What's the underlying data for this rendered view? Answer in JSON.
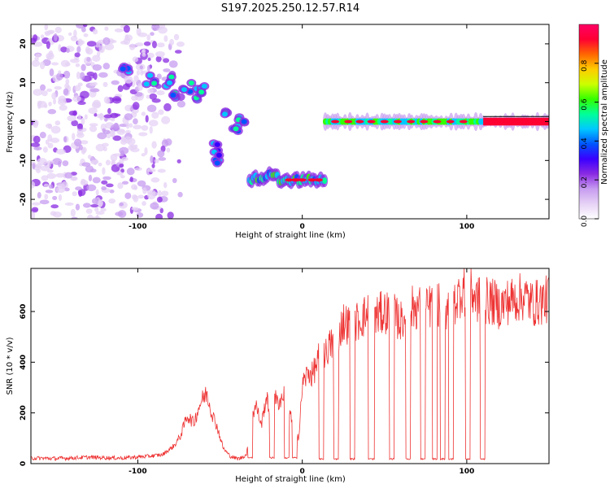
{
  "title": "S197.2025.250.12.57.R14",
  "chart_data": [
    {
      "type": "heatmap",
      "name": "spectrogram",
      "xlabel": "Height of straight line (km)",
      "ylabel": "Frequency (Hz)",
      "xlim": [
        -165,
        150
      ],
      "ylim": [
        -25,
        25
      ],
      "xticks": [
        -100,
        0,
        100
      ],
      "yticks": [
        -20,
        -10,
        0,
        10,
        20
      ],
      "colorbar": {
        "label": "Normalized spectral amplitude",
        "range": [
          0,
          1
        ],
        "ticks": [
          "0.0",
          "0.2",
          "0.4",
          "0.6",
          "0.8"
        ],
        "colors": [
          "#ffffff",
          "#e6d2f5",
          "#c79cf0",
          "#8a2be2",
          "#3a00ff",
          "#0055ff",
          "#00c8ff",
          "#00ff99",
          "#33ff00",
          "#ccff00",
          "#ffcc00",
          "#ff6600",
          "#ff0033",
          "#ff0066"
        ]
      },
      "features": [
        {
          "label": "diffuse noise",
          "x_range": [
            -165,
            -90
          ],
          "f_range": [
            -25,
            25
          ],
          "amplitude": 0.12
        },
        {
          "label": "descending trace 1",
          "points": [
            [
              -108,
              13
            ],
            [
              -92,
              11
            ],
            [
              -82,
              10
            ],
            [
              -76,
              6
            ],
            [
              -70,
              9
            ],
            [
              -64,
              7
            ],
            [
              -60,
              8
            ]
          ],
          "amplitude": 0.35
        },
        {
          "label": "descending trace 2",
          "points": [
            [
              -48,
              2
            ],
            [
              -40,
              -1
            ],
            [
              -36,
              0
            ]
          ],
          "amplitude": 0.35
        },
        {
          "label": "descending trace 3",
          "points": [
            [
              -54,
              -7
            ],
            [
              -52,
              -10
            ]
          ],
          "amplitude": 0.3
        },
        {
          "label": "negative band",
          "x_range": [
            -32,
            14
          ],
          "f_center": -15,
          "amplitude": 0.55
        },
        {
          "label": "zero-frequency line",
          "x_range": [
            14,
            150
          ],
          "f_center": 0,
          "amplitude": 0.9
        }
      ]
    },
    {
      "type": "line",
      "name": "snr",
      "xlabel": "Height of straight line (km)",
      "ylabel": "SNR (10 * v/v)",
      "xlim": [
        -165,
        150
      ],
      "ylim": [
        0,
        770
      ],
      "xticks": [
        -100,
        0,
        100
      ],
      "yticks": [
        0,
        200,
        400,
        600
      ],
      "series": [
        {
          "name": "SNR",
          "color": "#ee3333",
          "x": [
            -165,
            -150,
            -130,
            -110,
            -95,
            -85,
            -78,
            -74,
            -70,
            -66,
            -62,
            -58,
            -55,
            -52,
            -48,
            -44,
            -40,
            -38,
            -34,
            -30,
            -28,
            -25,
            -22,
            -20,
            -18,
            -15,
            -12,
            -10,
            -8,
            -5,
            -2,
            0,
            2,
            4,
            6,
            8,
            10,
            12,
            14,
            16,
            18,
            20,
            25,
            30,
            35,
            40,
            45,
            50,
            55,
            60,
            65,
            70,
            75,
            80,
            85,
            88,
            90,
            92,
            95,
            98,
            100,
            103,
            106,
            110,
            115,
            120,
            125,
            130,
            135,
            140,
            145,
            150
          ],
          "values": [
            22,
            20,
            25,
            22,
            28,
            35,
            70,
            110,
            190,
            160,
            240,
            280,
            200,
            150,
            60,
            30,
            20,
            20,
            35,
            200,
            230,
            150,
            260,
            220,
            280,
            240,
            260,
            300,
            200,
            150,
            100,
            310,
            340,
            360,
            350,
            380,
            420,
            450,
            430,
            460,
            470,
            480,
            560,
            540,
            570,
            590,
            580,
            600,
            590,
            560,
            610,
            620,
            600,
            640,
            620,
            610,
            650,
            630,
            660,
            700,
            640,
            680,
            650,
            640,
            640,
            620,
            640,
            650,
            660,
            630,
            640,
            650
          ]
        }
      ],
      "dropouts": [
        {
          "x": [
            -33,
            -30
          ],
          "min": 20
        },
        {
          "x": [
            -20,
            -17
          ],
          "min": 20
        },
        {
          "x": [
            -11,
            -8
          ],
          "min": 20
        },
        {
          "x": [
            -6,
            -3
          ],
          "min": 20
        },
        {
          "x": [
            10,
            13
          ],
          "min": 15
        },
        {
          "x": [
            19,
            22
          ],
          "min": 15
        },
        {
          "x": [
            29,
            32
          ],
          "min": 15
        },
        {
          "x": [
            40,
            44
          ],
          "min": 15
        },
        {
          "x": [
            53,
            56
          ],
          "min": 15
        },
        {
          "x": [
            63,
            66
          ],
          "min": 15
        },
        {
          "x": [
            72,
            75
          ],
          "min": 15
        },
        {
          "x": [
            79,
            82
          ],
          "min": 15
        },
        {
          "x": [
            84,
            87
          ],
          "min": 15
        },
        {
          "x": [
            89,
            92
          ],
          "min": 15
        },
        {
          "x": [
            99,
            102
          ],
          "min": 15
        },
        {
          "x": [
            108,
            111
          ],
          "min": 15
        }
      ]
    }
  ]
}
